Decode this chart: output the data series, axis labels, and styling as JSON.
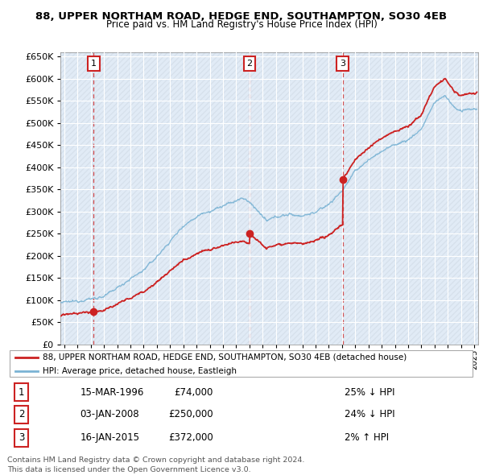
{
  "title": "88, UPPER NORTHAM ROAD, HEDGE END, SOUTHAMPTON, SO30 4EB",
  "subtitle": "Price paid vs. HM Land Registry's House Price Index (HPI)",
  "hpi_color": "#7ab3d4",
  "price_color": "#cc2222",
  "chart_bg": "#dce8f5",
  "hatch_bg": "#e8e8e8",
  "grid_color": "#ffffff",
  "ylim": [
    0,
    660000
  ],
  "yticks": [
    0,
    50000,
    100000,
    150000,
    200000,
    250000,
    300000,
    350000,
    400000,
    450000,
    500000,
    550000,
    600000,
    650000
  ],
  "xlim_start": 1993.7,
  "xlim_end": 2025.3,
  "sales": [
    {
      "date_num": 1996.21,
      "price": 74000,
      "label": "1"
    },
    {
      "date_num": 2008.01,
      "price": 250000,
      "label": "2"
    },
    {
      "date_num": 2015.05,
      "price": 372000,
      "label": "3"
    }
  ],
  "legend_items": [
    "88, UPPER NORTHAM ROAD, HEDGE END, SOUTHAMPTON, SO30 4EB (detached house)",
    "HPI: Average price, detached house, Eastleigh"
  ],
  "table_rows": [
    {
      "num": "1",
      "date": "15-MAR-1996",
      "price": "£74,000",
      "hpi": "25% ↓ HPI"
    },
    {
      "num": "2",
      "date": "03-JAN-2008",
      "price": "£250,000",
      "hpi": "24% ↓ HPI"
    },
    {
      "num": "3",
      "date": "16-JAN-2015",
      "price": "£372,000",
      "hpi": "2% ↑ HPI"
    }
  ],
  "footnote": "Contains HM Land Registry data © Crown copyright and database right 2024.\nThis data is licensed under the Open Government Licence v3.0."
}
